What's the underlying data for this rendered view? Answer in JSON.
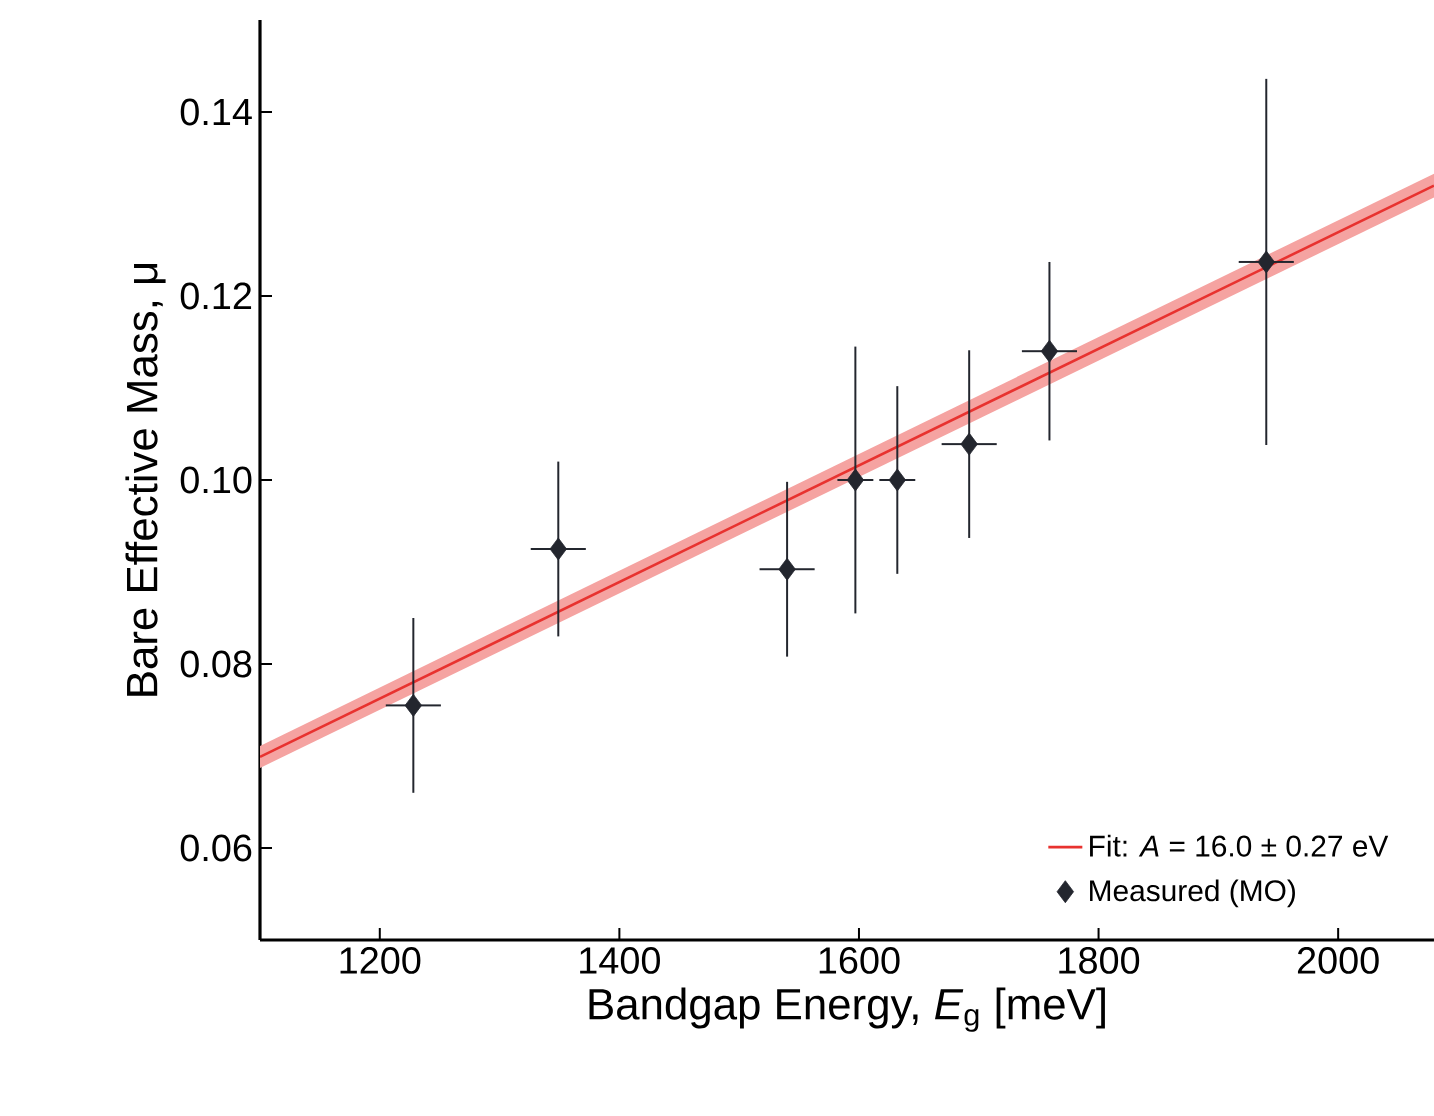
{
  "chart_data": {
    "type": "scatter",
    "xlabel": "Bandgap Energy, *E*$_{g}$ [meV]",
    "ylabel": "Bare Effective Mass, μ",
    "xlim": [
      1100,
      2080
    ],
    "ylim": [
      0.05,
      0.15
    ],
    "xticks": [
      1200,
      1400,
      1600,
      1800,
      2000
    ],
    "yticks": [
      0.06,
      0.08,
      {
        "value": 0.1,
        "label": "0.10"
      },
      0.12,
      0.14
    ],
    "legend": "bottom right",
    "grid": false,
    "series": [
      {
        "name": "Fit: *A* = 16.0 ± 0.27 eV",
        "type": "line",
        "color": "#e8322f",
        "x": [
          1100,
          2080
        ],
        "values": [
          0.0699,
          0.132
        ],
        "lower": [
          0.0687,
          0.1307
        ],
        "upper": [
          0.0711,
          0.1333
        ]
      },
      {
        "name": "Measured (MO)",
        "marker": "diamond",
        "color": "#23262e",
        "x": [
          1228,
          1349,
          1540,
          1597,
          1632,
          1692,
          1759,
          1940
        ],
        "values": [
          0.0755,
          0.0925,
          0.0903,
          0.1,
          0.1,
          0.1039,
          0.114,
          0.1237
        ],
        "errors": [
          0.0095,
          0.0095,
          0.0095,
          0.0145,
          0.0102,
          0.0102,
          0.0097,
          0.0199
        ],
        "xerrors": [
          23,
          23,
          23,
          15,
          15,
          23,
          23,
          23
        ]
      }
    ]
  }
}
